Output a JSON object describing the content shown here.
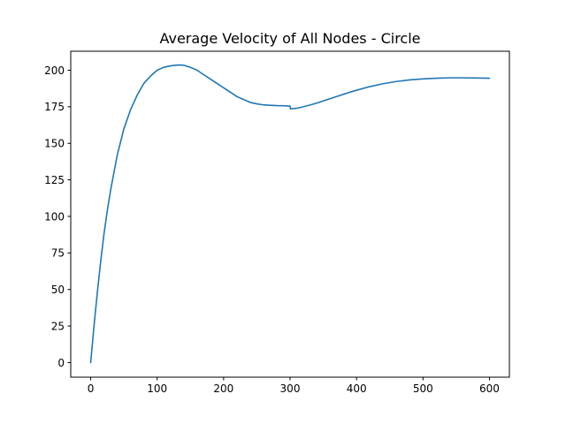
{
  "chart_data": {
    "type": "line",
    "title": "Average Velocity of All Nodes - Circle",
    "xlabel": "",
    "ylabel": "",
    "xlim": [
      -30,
      630
    ],
    "ylim": [
      -10,
      213
    ],
    "xticks": [
      0,
      100,
      200,
      300,
      400,
      500,
      600
    ],
    "yticks": [
      0,
      25,
      50,
      75,
      100,
      125,
      150,
      175,
      200
    ],
    "grid": false,
    "series": [
      {
        "color": "#1f77b4",
        "x": [
          0,
          5,
          10,
          15,
          20,
          25,
          30,
          40,
          50,
          60,
          70,
          80,
          90,
          100,
          110,
          120,
          130,
          135,
          140,
          150,
          160,
          170,
          180,
          190,
          200,
          210,
          220,
          230,
          240,
          250,
          260,
          270,
          280,
          290,
          298,
          300,
          300.5,
          310,
          320,
          330,
          340,
          350,
          360,
          370,
          380,
          390,
          400,
          420,
          440,
          460,
          480,
          500,
          520,
          540,
          560,
          580,
          600
        ],
        "y": [
          0,
          25,
          48,
          69,
          88,
          104,
          118,
          142,
          160,
          173,
          183,
          191,
          196,
          200,
          202,
          203,
          203.5,
          203.6,
          203.4,
          202,
          200,
          197,
          194,
          191,
          188,
          185,
          182,
          180,
          178,
          177,
          176.3,
          176,
          175.8,
          175.7,
          175.5,
          175.5,
          173.6,
          174,
          175,
          176.2,
          177.5,
          179,
          180.5,
          182,
          183.5,
          185,
          186.3,
          188.8,
          190.8,
          192.3,
          193.4,
          194.1,
          194.5,
          194.8,
          194.8,
          194.7,
          194.5
        ]
      }
    ]
  }
}
